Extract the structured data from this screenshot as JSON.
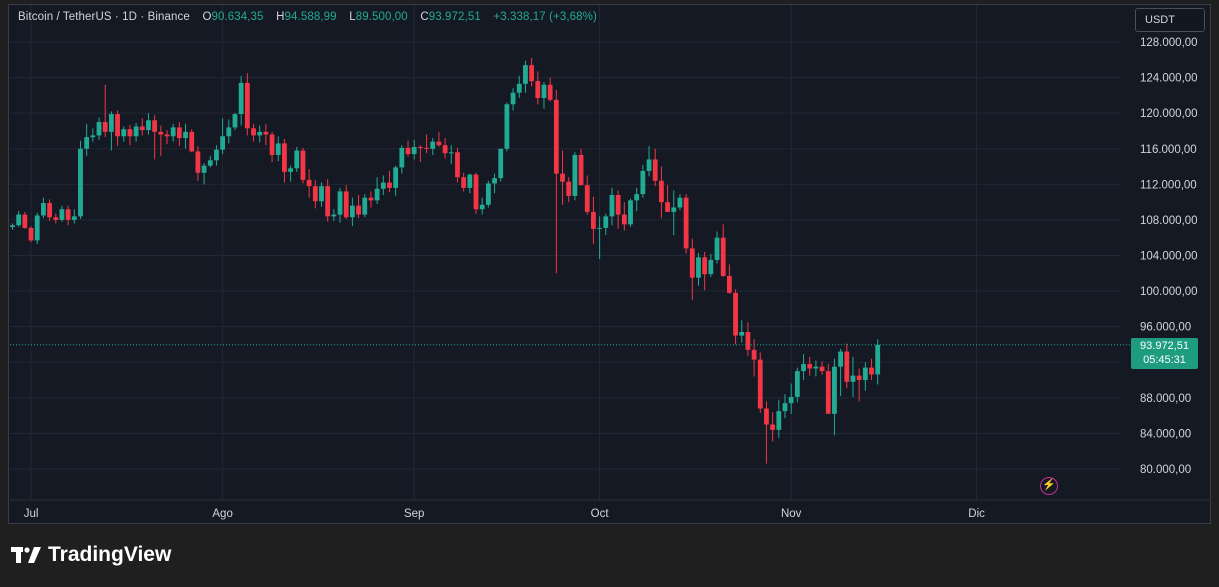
{
  "header": {
    "symbol": "Bitcoin / TetherUS · 1D · Binance",
    "open_label": "O",
    "open": "90.634,35",
    "high_label": "H",
    "high": "94.588,99",
    "low_label": "L",
    "low": "89.500,00",
    "close_label": "C",
    "close": "93.972,51",
    "change": "+3.338,17 (+3,68%)"
  },
  "currency_button": "USDT",
  "price_tag": {
    "price": "93.972,51",
    "countdown": "05:45:31"
  },
  "branding": {
    "name": "TradingView"
  },
  "colors": {
    "up": "#22ab94",
    "down": "#f23645",
    "background": "#151924",
    "grid": "#232733"
  },
  "icons": {
    "alert": "lightning-bolt-icon",
    "logo": "tradingview-logo-icon"
  },
  "chart_data": {
    "type": "candlestick",
    "yticks": [
      80000,
      84000,
      88000,
      92000,
      96000,
      100000,
      104000,
      108000,
      112000,
      116000,
      120000,
      124000,
      128000
    ],
    "ytick_labels": [
      "80.000,00",
      "84.000,00",
      "88.000,00",
      "",
      "96.000,00",
      "100.000,00",
      "104.000,00",
      "108.000,00",
      "112.000,00",
      "116.000,00",
      "120.000,00",
      "124.000,00",
      "128.000,00"
    ],
    "ylim": [
      77000,
      131000
    ],
    "xtick_labels": [
      "Jul",
      "Ago",
      "Sep",
      "Oct",
      "Nov",
      "Dic"
    ],
    "xtick_index": [
      3,
      34,
      65,
      95,
      126,
      156
    ],
    "last_price": 93972.51,
    "grid": true,
    "candles": [
      [
        107200,
        107600,
        106900,
        107400
      ],
      [
        107400,
        109000,
        107200,
        108600
      ],
      [
        108600,
        108900,
        107000,
        107100
      ],
      [
        107100,
        107300,
        105500,
        105700
      ],
      [
        105700,
        108800,
        105300,
        108500
      ],
      [
        108500,
        110500,
        108200,
        109900
      ],
      [
        109900,
        110300,
        107900,
        108300
      ],
      [
        108300,
        108700,
        107600,
        108000
      ],
      [
        108000,
        109600,
        107800,
        109200
      ],
      [
        109200,
        109600,
        107400,
        108000
      ],
      [
        108000,
        109200,
        107600,
        108400
      ],
      [
        108400,
        116900,
        108100,
        116000
      ],
      [
        116000,
        118800,
        115200,
        117300
      ],
      [
        117300,
        118300,
        116800,
        117500
      ],
      [
        117500,
        119500,
        117000,
        119000
      ],
      [
        119000,
        123200,
        117300,
        117900
      ],
      [
        117900,
        120200,
        115800,
        119900
      ],
      [
        119900,
        120300,
        116300,
        117400
      ],
      [
        117400,
        118500,
        116800,
        118200
      ],
      [
        118200,
        118700,
        116400,
        117400
      ],
      [
        117400,
        118900,
        116800,
        118500
      ],
      [
        118500,
        119400,
        117500,
        118100
      ],
      [
        118100,
        120000,
        117600,
        119200
      ],
      [
        119200,
        119800,
        114800,
        117900
      ],
      [
        117900,
        118600,
        115200,
        117600
      ],
      [
        117600,
        118100,
        116500,
        117400
      ],
      [
        117400,
        118800,
        116800,
        118400
      ],
      [
        118400,
        119000,
        116300,
        117200
      ],
      [
        117200,
        118800,
        116000,
        117900
      ],
      [
        117900,
        118200,
        115600,
        115700
      ],
      [
        115700,
        116300,
        112400,
        113300
      ],
      [
        113300,
        114400,
        112000,
        114100
      ],
      [
        114100,
        115200,
        113900,
        114700
      ],
      [
        114700,
        116400,
        114100,
        115900
      ],
      [
        115900,
        119400,
        115400,
        117400
      ],
      [
        117400,
        119300,
        116600,
        118400
      ],
      [
        118400,
        120000,
        118100,
        119900
      ],
      [
        119900,
        124200,
        118600,
        123400
      ],
      [
        123400,
        124500,
        117500,
        118300
      ],
      [
        118300,
        118800,
        116800,
        117500
      ],
      [
        117500,
        118600,
        116700,
        117900
      ],
      [
        117900,
        118800,
        116400,
        117600
      ],
      [
        117600,
        117900,
        114500,
        115300
      ],
      [
        115300,
        117400,
        114600,
        116600
      ],
      [
        116600,
        117100,
        112200,
        113400
      ],
      [
        113400,
        114100,
        112300,
        113800
      ],
      [
        113800,
        116200,
        113400,
        115800
      ],
      [
        115800,
        116100,
        112100,
        112500
      ],
      [
        112500,
        113700,
        110500,
        111800
      ],
      [
        111800,
        112500,
        109300,
        110100
      ],
      [
        110100,
        112200,
        109500,
        111800
      ],
      [
        111800,
        112600,
        107800,
        108400
      ],
      [
        108400,
        109200,
        107900,
        108600
      ],
      [
        108600,
        111600,
        107700,
        111200
      ],
      [
        111200,
        111900,
        108100,
        108300
      ],
      [
        108300,
        110500,
        107300,
        109600
      ],
      [
        109600,
        110800,
        108200,
        108600
      ],
      [
        108600,
        110900,
        108300,
        110500
      ],
      [
        110500,
        111200,
        109400,
        110200
      ],
      [
        110200,
        112800,
        109800,
        111500
      ],
      [
        111500,
        113000,
        110800,
        112200
      ],
      [
        112200,
        113500,
        111100,
        111600
      ],
      [
        111600,
        114100,
        110700,
        113900
      ],
      [
        113900,
        116400,
        113200,
        116100
      ],
      [
        116100,
        116900,
        115100,
        115400
      ],
      [
        115400,
        117000,
        114800,
        116200
      ],
      [
        116200,
        116400,
        114500,
        116100
      ],
      [
        116100,
        117600,
        115500,
        116000
      ],
      [
        116000,
        117200,
        115300,
        116800
      ],
      [
        116800,
        117900,
        116200,
        116400
      ],
      [
        116400,
        117200,
        114900,
        115500
      ],
      [
        115500,
        116400,
        114300,
        115600
      ],
      [
        115600,
        116100,
        112200,
        112800
      ],
      [
        112800,
        113300,
        111200,
        111600
      ],
      [
        111600,
        113200,
        111000,
        113100
      ],
      [
        113100,
        113300,
        108700,
        109200
      ],
      [
        109200,
        110500,
        108600,
        109700
      ],
      [
        109700,
        112400,
        109400,
        112100
      ],
      [
        112100,
        113200,
        111000,
        112700
      ],
      [
        112700,
        115600,
        112300,
        116000
      ],
      [
        116000,
        121200,
        115700,
        121000
      ],
      [
        121000,
        122800,
        120300,
        122300
      ],
      [
        122300,
        124200,
        121700,
        123300
      ],
      [
        123300,
        125900,
        122300,
        125400
      ],
      [
        125400,
        126200,
        123000,
        123600
      ],
      [
        123600,
        124700,
        121000,
        121700
      ],
      [
        121700,
        123500,
        120500,
        123200
      ],
      [
        123200,
        124000,
        121300,
        121500
      ],
      [
        121500,
        122600,
        102000,
        113200
      ],
      [
        113200,
        115800,
        109700,
        112300
      ],
      [
        112300,
        112800,
        110000,
        110700
      ],
      [
        110700,
        115600,
        110200,
        115300
      ],
      [
        115300,
        116000,
        111900,
        111900
      ],
      [
        111900,
        113000,
        108600,
        108900
      ],
      [
        108900,
        110600,
        105300,
        107000
      ],
      [
        107000,
        108400,
        103600,
        107100
      ],
      [
        107100,
        108700,
        106300,
        108400
      ],
      [
        108400,
        111600,
        107400,
        110800
      ],
      [
        110800,
        111300,
        107000,
        108600
      ],
      [
        108600,
        110000,
        106800,
        107500
      ],
      [
        107500,
        110400,
        107200,
        110200
      ],
      [
        110200,
        111600,
        109000,
        110900
      ],
      [
        110900,
        114200,
        110500,
        113500
      ],
      [
        113500,
        116300,
        112900,
        114800
      ],
      [
        114800,
        116000,
        111800,
        112400
      ],
      [
        112400,
        114000,
        108200,
        110000
      ],
      [
        110000,
        111900,
        108900,
        108900
      ],
      [
        108900,
        111300,
        106300,
        109400
      ],
      [
        109400,
        110900,
        109100,
        110500
      ],
      [
        110500,
        110900,
        104200,
        104800
      ],
      [
        104800,
        105900,
        99000,
        101500
      ],
      [
        101500,
        104300,
        100600,
        103800
      ],
      [
        103800,
        104400,
        100100,
        101900
      ],
      [
        101900,
        104200,
        101600,
        103500
      ],
      [
        103500,
        106700,
        103100,
        106000
      ],
      [
        106000,
        107500,
        101600,
        101700
      ],
      [
        101700,
        103000,
        99700,
        99800
      ],
      [
        99800,
        100200,
        94000,
        95000
      ],
      [
        95000,
        96700,
        94200,
        95400
      ],
      [
        95400,
        96500,
        92700,
        93400
      ],
      [
        93400,
        94600,
        90400,
        92300
      ],
      [
        92300,
        93100,
        86300,
        86800
      ],
      [
        86800,
        87600,
        80600,
        85000
      ],
      [
        85000,
        86400,
        83100,
        84400
      ],
      [
        84400,
        87800,
        83500,
        86500
      ],
      [
        86500,
        88400,
        85700,
        87400
      ],
      [
        87400,
        89600,
        86200,
        88100
      ],
      [
        88100,
        91400,
        87500,
        91000
      ],
      [
        91000,
        92900,
        90000,
        91800
      ],
      [
        91800,
        92600,
        90500,
        91300
      ],
      [
        91300,
        92200,
        90400,
        91500
      ],
      [
        91500,
        92100,
        90600,
        91000
      ],
      [
        91000,
        91800,
        86200,
        86200
      ],
      [
        86200,
        92400,
        83800,
        91500
      ],
      [
        91500,
        93500,
        88200,
        93200
      ],
      [
        93200,
        94100,
        89100,
        89800
      ],
      [
        89800,
        92600,
        88100,
        90500
      ],
      [
        90500,
        91300,
        87600,
        90000
      ],
      [
        90000,
        92000,
        88800,
        91400
      ],
      [
        91400,
        92400,
        90000,
        90634
      ],
      [
        90634,
        94589,
        89500,
        93973
      ]
    ]
  }
}
